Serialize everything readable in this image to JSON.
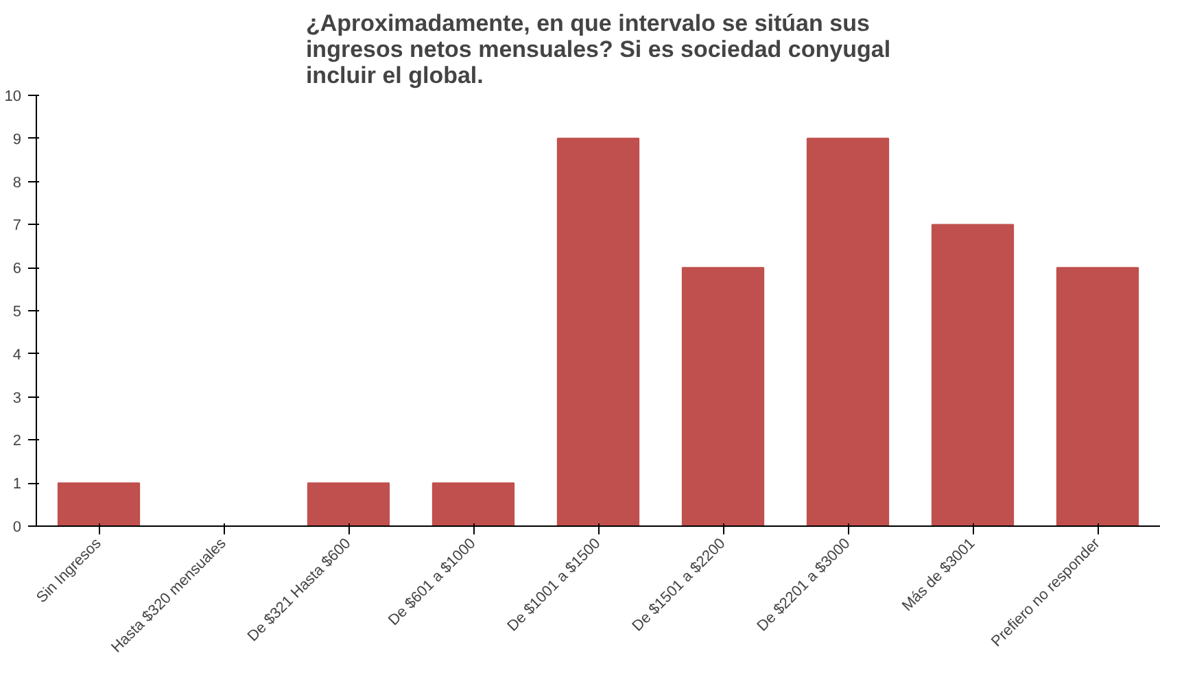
{
  "chart_data": {
    "type": "bar",
    "title": "¿Aproximadamente, en que intervalo se sitúan sus ingresos netos mensuales? Si es sociedad conyugal incluir el global.",
    "categories": [
      "Sin Ingresos",
      "Hasta $320 mensuales",
      "De $321 Hasta $600",
      "De $601 a $1000",
      "De $1001 a $1500",
      "De $1501 a $2200",
      "De $2201 a $3000",
      "Más de $3001",
      "Prefiero no responder"
    ],
    "values": [
      1,
      0,
      1,
      1,
      9,
      6,
      9,
      7,
      6
    ],
    "color": "#c0504d",
    "ylim": [
      0,
      10
    ],
    "yticks": [
      0,
      1,
      2,
      3,
      4,
      5,
      6,
      7,
      8,
      9,
      10
    ],
    "grid": false
  }
}
